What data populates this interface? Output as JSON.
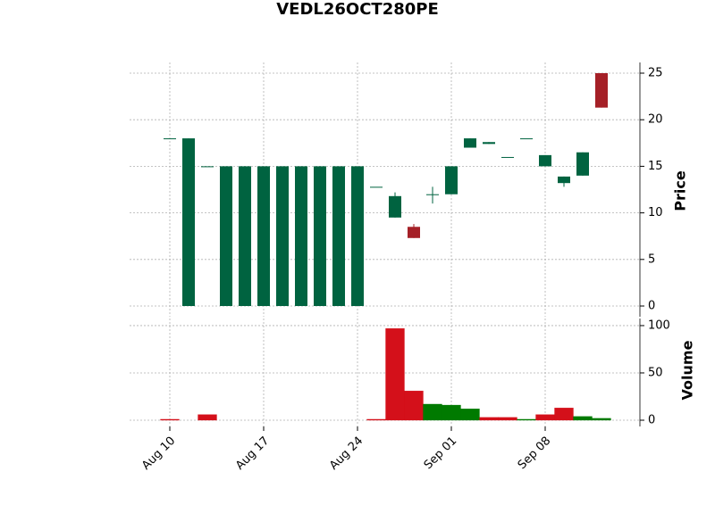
{
  "chart_data": {
    "type": "candlestick",
    "title": "VEDL26OCT280PE",
    "categories": [
      "Aug 10",
      null,
      null,
      null,
      null,
      "Aug 17",
      null,
      null,
      null,
      null,
      "Aug 24",
      null,
      null,
      null,
      null,
      "Sep 01",
      null,
      null,
      null,
      null,
      "Sep 08",
      null,
      null,
      null
    ],
    "open": [
      18,
      0,
      15,
      0,
      0,
      0,
      0,
      0,
      0,
      0,
      0,
      12.8,
      9.5,
      8.5,
      12,
      12,
      17,
      17.4,
      16,
      18,
      15,
      13.2,
      14,
      25
    ],
    "high": [
      18,
      18,
      15,
      15,
      15,
      15,
      15,
      15,
      15,
      15,
      15,
      12.8,
      12.2,
      8.8,
      12.8,
      15,
      18,
      17.6,
      16,
      18,
      16.2,
      13.9,
      16.5,
      25
    ],
    "low": [
      18,
      0,
      15,
      0,
      0,
      0,
      0,
      0,
      0,
      0,
      0,
      12.8,
      9.5,
      7.3,
      11,
      12,
      17,
      17.4,
      16,
      18,
      15,
      12.8,
      14,
      21.3
    ],
    "close": [
      18,
      18,
      15,
      15,
      15,
      15,
      15,
      15,
      15,
      15,
      15,
      12.8,
      11.8,
      7.3,
      12,
      15,
      18,
      17.6,
      16,
      18,
      16.2,
      13.9,
      16.5,
      21.3
    ],
    "volume": [
      1,
      0,
      6,
      0,
      0,
      0,
      0,
      0,
      0,
      0,
      0,
      1,
      97,
      31,
      17,
      16,
      12,
      3,
      3,
      1,
      6,
      13,
      4,
      2
    ],
    "volume_colors": [
      "#d4101a",
      "#007a00",
      "#d4101a",
      "#007a00",
      "#007a00",
      "#007a00",
      "#007a00",
      "#007a00",
      "#007a00",
      "#007a00",
      "#007a00",
      "#d4101a",
      "#d4101a",
      "#d4101a",
      "#007a00",
      "#007a00",
      "#007a00",
      "#d4101a",
      "#d4101a",
      "#007a00",
      "#d4101a",
      "#d4101a",
      "#007a00",
      "#007a00"
    ],
    "up_color": "#006340",
    "down_color": "#a52027",
    "y_label": "Price",
    "y2_label": "Volume",
    "ylim": [
      -1.15,
      26.15
    ],
    "yticks": [
      0,
      5,
      10,
      15,
      20,
      25
    ],
    "y2lim": [
      -6.6,
      107.5
    ],
    "y2ticks": [
      0,
      50,
      100
    ],
    "grid": true
  }
}
